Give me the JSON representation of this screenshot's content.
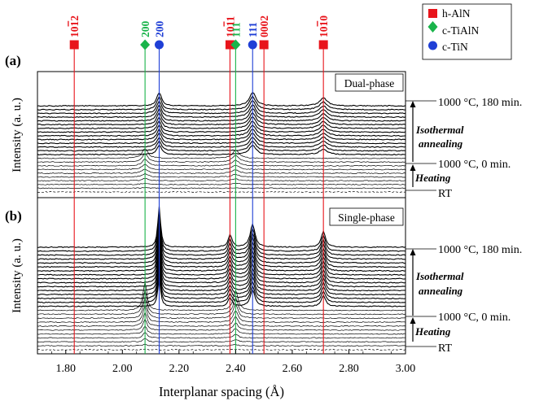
{
  "chart_data": {
    "type": "line",
    "xlabel": "Interplanar spacing (Å)",
    "ylabel": "Intensity (a. u.)",
    "xlim": [
      1.7,
      3.0
    ],
    "xticks": [
      "1.80",
      "2.00",
      "2.20",
      "2.40",
      "2.60",
      "2.80",
      "3.00"
    ],
    "legend": {
      "placement": "top-right",
      "entries": [
        {
          "name": "h-AlN",
          "color": "#e8141b",
          "marker": "square"
        },
        {
          "name": "c-TiAlN",
          "color": "#19b44a",
          "marker": "diamond"
        },
        {
          "name": "c-TiN",
          "color": "#1f3fd6",
          "marker": "circle"
        }
      ]
    },
    "reflections": [
      {
        "label": "10-12",
        "phase": "h-AlN",
        "d": 1.83,
        "color": "#e8141b",
        "marker": "square"
      },
      {
        "label": "200",
        "phase": "c-TiAlN",
        "d": 2.08,
        "color": "#19b44a",
        "marker": "diamond"
      },
      {
        "label": "200",
        "phase": "c-TiN",
        "d": 2.13,
        "color": "#1f3fd6",
        "marker": "circle"
      },
      {
        "label": "10-11",
        "phase": "h-AlN",
        "d": 2.38,
        "color": "#e8141b",
        "marker": "square"
      },
      {
        "label": "111",
        "phase": "c-TiAlN",
        "d": 2.4,
        "color": "#19b44a",
        "marker": "diamond"
      },
      {
        "label": "111",
        "phase": "c-TiN",
        "d": 2.46,
        "color": "#1f3fd6",
        "marker": "circle"
      },
      {
        "label": "0002",
        "phase": "h-AlN",
        "d": 2.5,
        "color": "#e8141b",
        "marker": "square"
      },
      {
        "label": "10-10",
        "phase": "h-AlN",
        "d": 2.71,
        "color": "#e8141b",
        "marker": "square"
      }
    ],
    "panels": [
      {
        "id": "a",
        "panel_label": "(a)",
        "name": "Dual-phase",
        "heating_traces": 10,
        "annealing_traces": 14,
        "peaks_heating": [
          {
            "d": 2.08,
            "h": 0.55,
            "w": 0.012
          },
          {
            "d": 2.4,
            "h": 0.45,
            "w": 0.014
          }
        ],
        "peaks_annealing": [
          {
            "d": 2.13,
            "h": 0.75,
            "w": 0.01
          },
          {
            "d": 2.46,
            "h": 0.75,
            "w": 0.014
          },
          {
            "d": 2.71,
            "h": 0.45,
            "w": 0.016
          }
        ],
        "annotations": {
          "top": "1000 °C, 180 min.",
          "middle": "1000 °C, 0 min.",
          "bottom": "RT",
          "anneal_lines": [
            "Isothermal",
            "annealing"
          ],
          "heating": "Heating"
        }
      },
      {
        "id": "b",
        "panel_label": "(b)",
        "name": "Single-phase",
        "heating_traces": 11,
        "annealing_traces": 16,
        "peaks_heating": [
          {
            "d": 2.08,
            "h": 1.6,
            "w": 0.008
          },
          {
            "d": 2.4,
            "h": 1.1,
            "w": 0.01
          }
        ],
        "peaks_annealing": [
          {
            "d": 2.13,
            "h": 2.3,
            "w": 0.006
          },
          {
            "d": 2.38,
            "h": 0.7,
            "w": 0.008
          },
          {
            "d": 2.46,
            "h": 1.3,
            "w": 0.01
          },
          {
            "d": 2.71,
            "h": 0.9,
            "w": 0.009
          }
        ],
        "annotations": {
          "top": "1000 °C, 180 min.",
          "middle": "1000 °C, 0 min.",
          "bottom": "RT",
          "anneal_lines": [
            "Isothermal",
            "annealing"
          ],
          "heating": "Heating"
        }
      }
    ]
  }
}
